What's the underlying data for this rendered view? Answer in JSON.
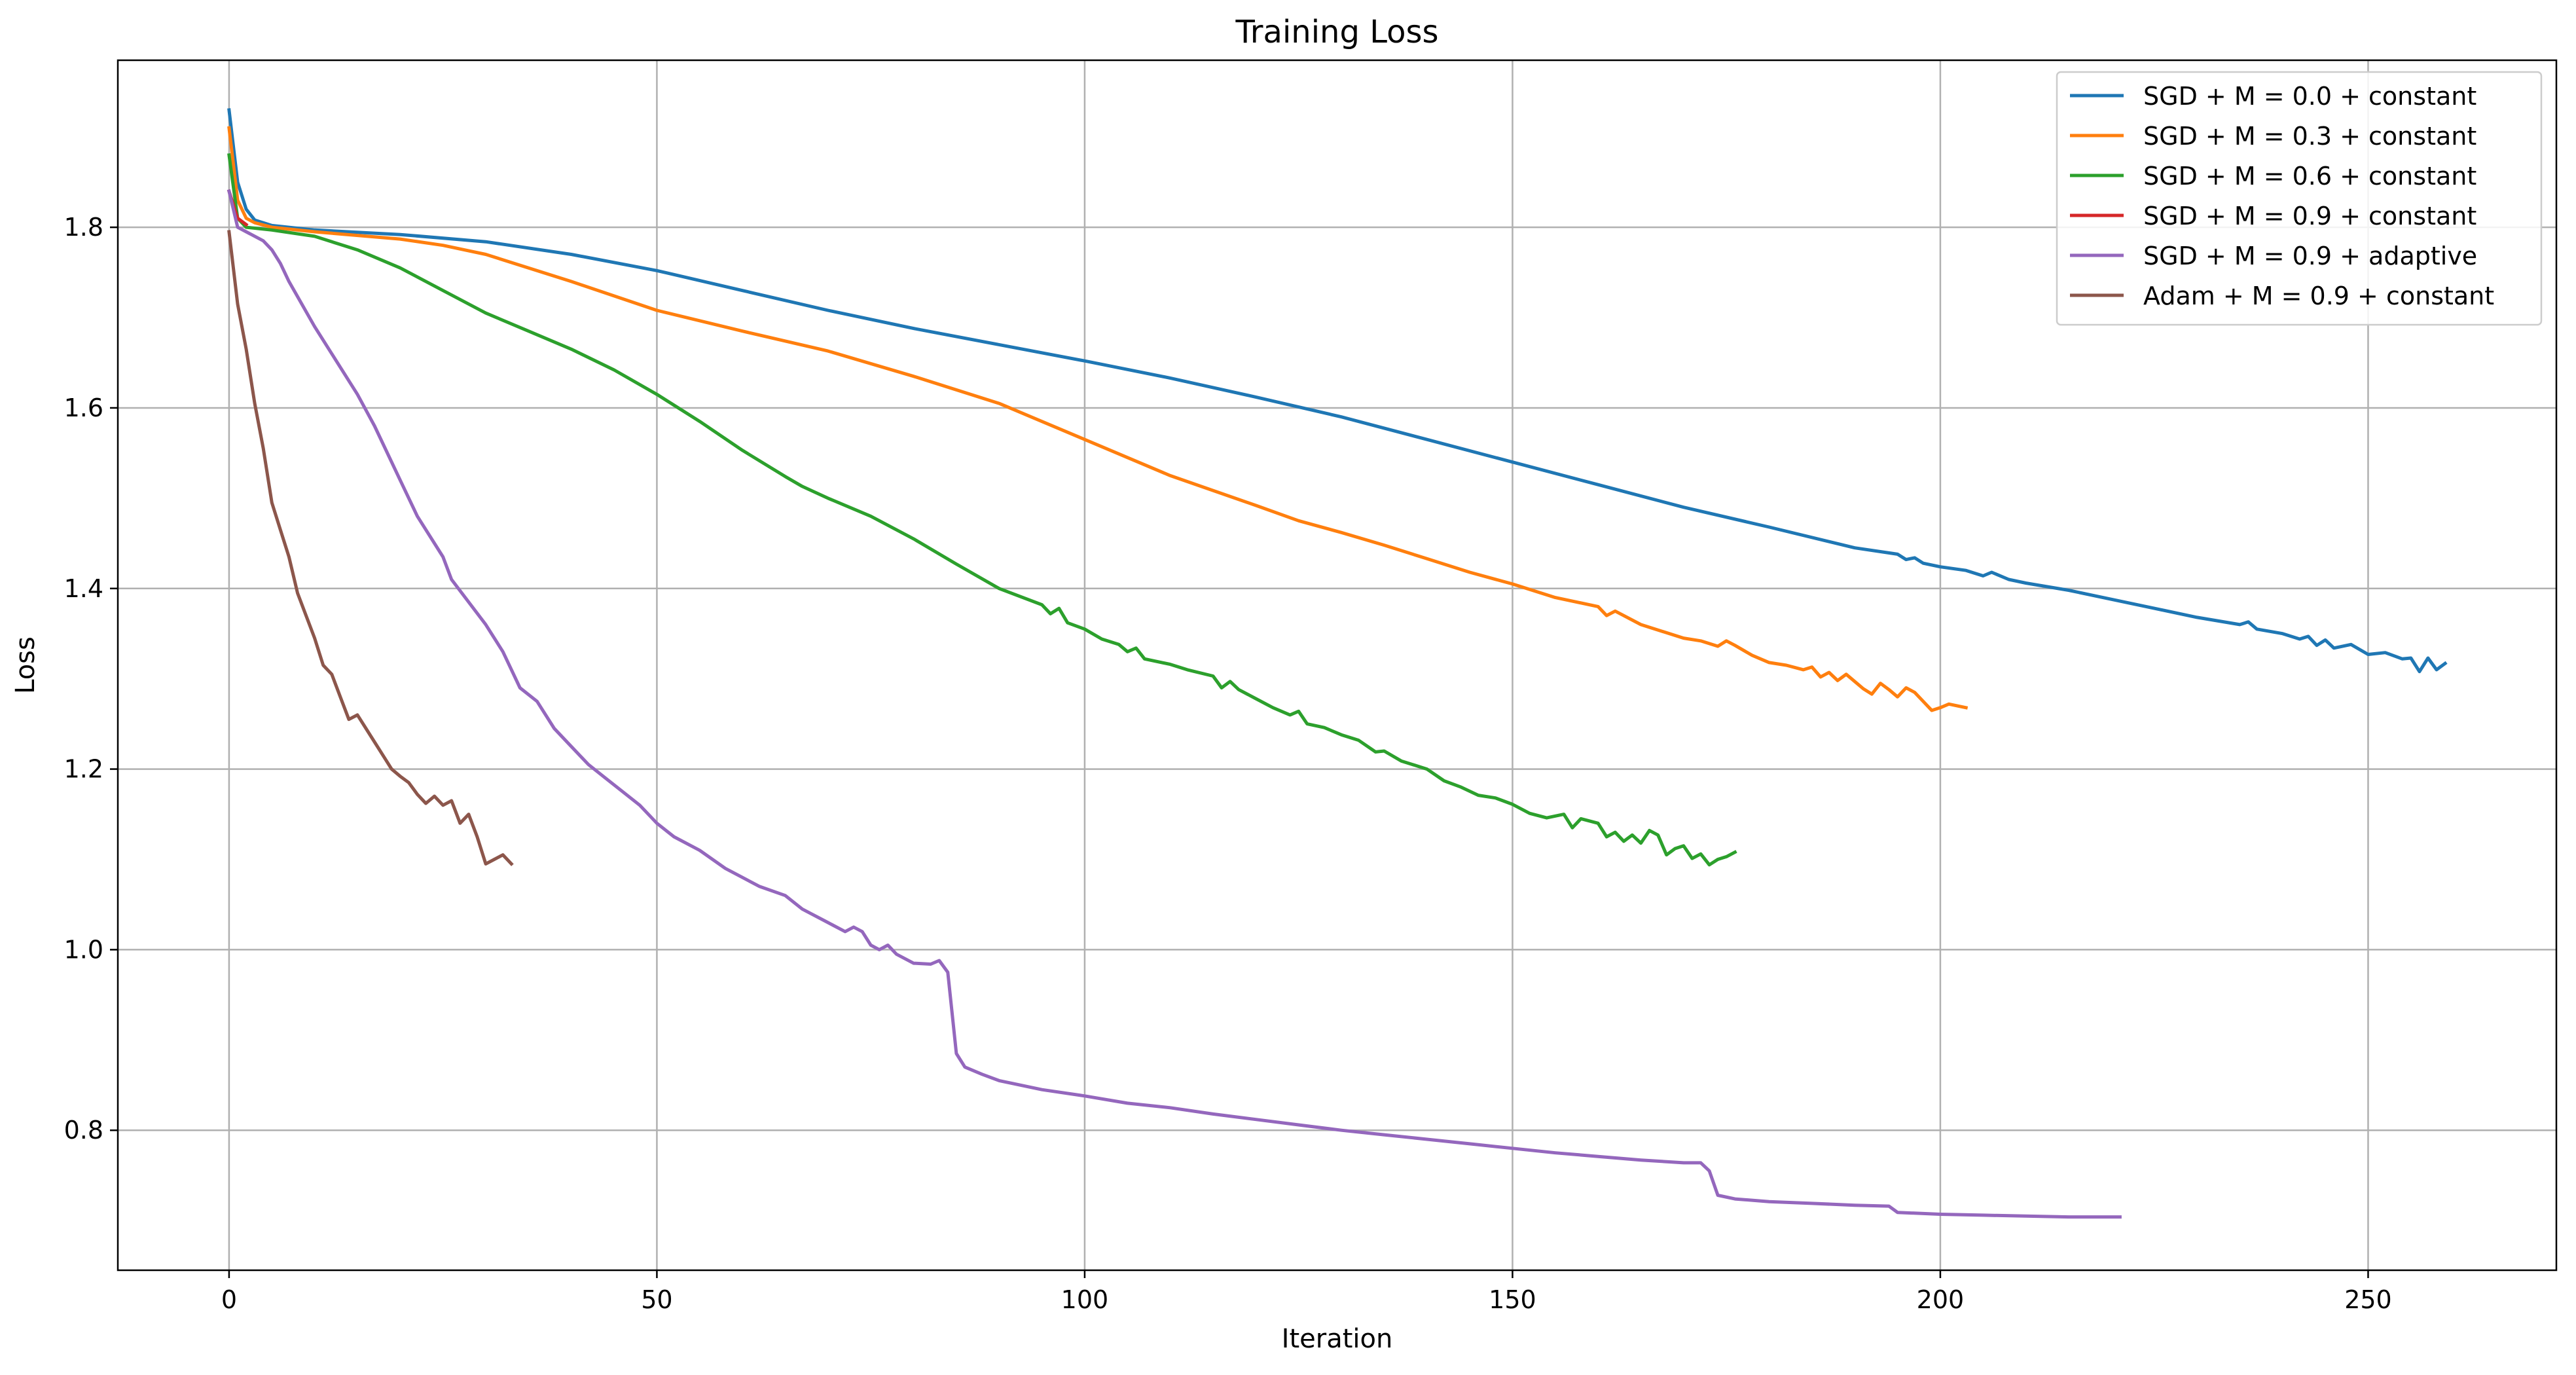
{
  "chart_data": {
    "type": "line",
    "title": "Training Loss",
    "xlabel": "Iteration",
    "ylabel": "Loss",
    "xlim": [
      -13,
      272
    ],
    "ylim": [
      0.645,
      1.985
    ],
    "xticks": [
      0,
      50,
      100,
      150,
      200,
      250
    ],
    "yticks": [
      0.8,
      1.0,
      1.2,
      1.4,
      1.6,
      1.8
    ],
    "xtick_labels": [
      "0",
      "50",
      "100",
      "150",
      "200",
      "250"
    ],
    "ytick_labels": [
      "0.8",
      "1.0",
      "1.2",
      "1.4",
      "1.6",
      "1.8"
    ],
    "grid": true,
    "legend_position": "top-right",
    "series": [
      {
        "name": "SGD + M = 0.0 + constant",
        "color": "#1f77b4",
        "points": [
          [
            0,
            1.93
          ],
          [
            1,
            1.85
          ],
          [
            2,
            1.82
          ],
          [
            3,
            1.808
          ],
          [
            5,
            1.802
          ],
          [
            10,
            1.797
          ],
          [
            20,
            1.792
          ],
          [
            30,
            1.784
          ],
          [
            40,
            1.77
          ],
          [
            50,
            1.752
          ],
          [
            60,
            1.73
          ],
          [
            70,
            1.708
          ],
          [
            80,
            1.688
          ],
          [
            90,
            1.67
          ],
          [
            100,
            1.652
          ],
          [
            110,
            1.633
          ],
          [
            120,
            1.612
          ],
          [
            130,
            1.59
          ],
          [
            140,
            1.565
          ],
          [
            150,
            1.54
          ],
          [
            160,
            1.515
          ],
          [
            170,
            1.49
          ],
          [
            180,
            1.468
          ],
          [
            190,
            1.445
          ],
          [
            195,
            1.438
          ],
          [
            196,
            1.432
          ],
          [
            197,
            1.434
          ],
          [
            198,
            1.428
          ],
          [
            200,
            1.424
          ],
          [
            203,
            1.42
          ],
          [
            205,
            1.414
          ],
          [
            206,
            1.418
          ],
          [
            208,
            1.41
          ],
          [
            210,
            1.406
          ],
          [
            215,
            1.398
          ],
          [
            220,
            1.388
          ],
          [
            225,
            1.378
          ],
          [
            230,
            1.368
          ],
          [
            235,
            1.36
          ],
          [
            236,
            1.363
          ],
          [
            237,
            1.355
          ],
          [
            240,
            1.35
          ],
          [
            242,
            1.344
          ],
          [
            243,
            1.347
          ],
          [
            244,
            1.337
          ],
          [
            245,
            1.343
          ],
          [
            246,
            1.334
          ],
          [
            248,
            1.338
          ],
          [
            250,
            1.327
          ],
          [
            252,
            1.329
          ],
          [
            254,
            1.322
          ],
          [
            255,
            1.323
          ],
          [
            256,
            1.308
          ],
          [
            257,
            1.323
          ],
          [
            258,
            1.31
          ],
          [
            259,
            1.317
          ]
        ]
      },
      {
        "name": "SGD + M = 0.3 + constant",
        "color": "#ff7f0e",
        "points": [
          [
            0,
            1.91
          ],
          [
            1,
            1.83
          ],
          [
            2,
            1.81
          ],
          [
            3,
            1.805
          ],
          [
            5,
            1.8
          ],
          [
            10,
            1.795
          ],
          [
            20,
            1.787
          ],
          [
            25,
            1.78
          ],
          [
            30,
            1.77
          ],
          [
            40,
            1.74
          ],
          [
            50,
            1.708
          ],
          [
            60,
            1.685
          ],
          [
            70,
            1.663
          ],
          [
            80,
            1.635
          ],
          [
            90,
            1.605
          ],
          [
            100,
            1.565
          ],
          [
            110,
            1.525
          ],
          [
            120,
            1.492
          ],
          [
            125,
            1.475
          ],
          [
            130,
            1.462
          ],
          [
            135,
            1.448
          ],
          [
            140,
            1.433
          ],
          [
            145,
            1.418
          ],
          [
            150,
            1.405
          ],
          [
            155,
            1.39
          ],
          [
            160,
            1.38
          ],
          [
            161,
            1.37
          ],
          [
            162,
            1.375
          ],
          [
            165,
            1.36
          ],
          [
            170,
            1.345
          ],
          [
            172,
            1.342
          ],
          [
            174,
            1.336
          ],
          [
            175,
            1.342
          ],
          [
            176,
            1.337
          ],
          [
            178,
            1.326
          ],
          [
            180,
            1.318
          ],
          [
            182,
            1.315
          ],
          [
            184,
            1.31
          ],
          [
            185,
            1.313
          ],
          [
            186,
            1.302
          ],
          [
            187,
            1.307
          ],
          [
            188,
            1.298
          ],
          [
            189,
            1.305
          ],
          [
            190,
            1.297
          ],
          [
            191,
            1.289
          ],
          [
            192,
            1.283
          ],
          [
            193,
            1.295
          ],
          [
            194,
            1.288
          ],
          [
            195,
            1.28
          ],
          [
            196,
            1.29
          ],
          [
            197,
            1.285
          ],
          [
            198,
            1.275
          ],
          [
            199,
            1.265
          ],
          [
            200,
            1.268
          ],
          [
            201,
            1.272
          ],
          [
            202,
            1.27
          ],
          [
            203,
            1.268
          ]
        ]
      },
      {
        "name": "SGD + M = 0.6 + constant",
        "color": "#2ca02c",
        "points": [
          [
            0,
            1.88
          ],
          [
            1,
            1.81
          ],
          [
            2,
            1.8
          ],
          [
            5,
            1.797
          ],
          [
            10,
            1.79
          ],
          [
            15,
            1.775
          ],
          [
            20,
            1.755
          ],
          [
            25,
            1.73
          ],
          [
            30,
            1.705
          ],
          [
            35,
            1.685
          ],
          [
            40,
            1.665
          ],
          [
            45,
            1.642
          ],
          [
            50,
            1.615
          ],
          [
            55,
            1.585
          ],
          [
            60,
            1.553
          ],
          [
            65,
            1.524
          ],
          [
            67,
            1.513
          ],
          [
            70,
            1.5
          ],
          [
            75,
            1.48
          ],
          [
            80,
            1.455
          ],
          [
            85,
            1.427
          ],
          [
            90,
            1.4
          ],
          [
            95,
            1.382
          ],
          [
            96,
            1.372
          ],
          [
            97,
            1.378
          ],
          [
            98,
            1.362
          ],
          [
            100,
            1.355
          ],
          [
            102,
            1.344
          ],
          [
            104,
            1.338
          ],
          [
            105,
            1.33
          ],
          [
            106,
            1.334
          ],
          [
            107,
            1.322
          ],
          [
            110,
            1.316
          ],
          [
            112,
            1.31
          ],
          [
            115,
            1.303
          ],
          [
            116,
            1.29
          ],
          [
            117,
            1.297
          ],
          [
            118,
            1.288
          ],
          [
            120,
            1.278
          ],
          [
            122,
            1.268
          ],
          [
            124,
            1.26
          ],
          [
            125,
            1.264
          ],
          [
            126,
            1.25
          ],
          [
            128,
            1.246
          ],
          [
            130,
            1.238
          ],
          [
            132,
            1.232
          ],
          [
            134,
            1.219
          ],
          [
            135,
            1.22
          ],
          [
            137,
            1.209
          ],
          [
            140,
            1.2
          ],
          [
            142,
            1.187
          ],
          [
            144,
            1.18
          ],
          [
            146,
            1.171
          ],
          [
            148,
            1.168
          ],
          [
            150,
            1.161
          ],
          [
            152,
            1.151
          ],
          [
            154,
            1.146
          ],
          [
            156,
            1.15
          ],
          [
            157,
            1.135
          ],
          [
            158,
            1.145
          ],
          [
            160,
            1.14
          ],
          [
            161,
            1.125
          ],
          [
            162,
            1.13
          ],
          [
            163,
            1.12
          ],
          [
            164,
            1.127
          ],
          [
            165,
            1.118
          ],
          [
            166,
            1.132
          ],
          [
            167,
            1.127
          ],
          [
            168,
            1.105
          ],
          [
            169,
            1.112
          ],
          [
            170,
            1.115
          ],
          [
            171,
            1.101
          ],
          [
            172,
            1.106
          ],
          [
            173,
            1.094
          ],
          [
            174,
            1.1
          ],
          [
            175,
            1.103
          ],
          [
            176,
            1.108
          ]
        ]
      },
      {
        "name": "SGD + M = 0.9 + constant",
        "color": "#d62728",
        "points": [
          [
            0,
            1.84
          ],
          [
            1,
            1.81
          ],
          [
            2,
            1.803
          ]
        ]
      },
      {
        "name": "SGD + M = 0.9 + adaptive",
        "color": "#9467bd",
        "points": [
          [
            0,
            1.84
          ],
          [
            1,
            1.8
          ],
          [
            2,
            1.795
          ],
          [
            4,
            1.785
          ],
          [
            5,
            1.775
          ],
          [
            6,
            1.76
          ],
          [
            7,
            1.74
          ],
          [
            10,
            1.69
          ],
          [
            15,
            1.615
          ],
          [
            17,
            1.58
          ],
          [
            20,
            1.52
          ],
          [
            22,
            1.48
          ],
          [
            25,
            1.435
          ],
          [
            26,
            1.41
          ],
          [
            30,
            1.36
          ],
          [
            32,
            1.33
          ],
          [
            34,
            1.29
          ],
          [
            36,
            1.275
          ],
          [
            38,
            1.245
          ],
          [
            40,
            1.225
          ],
          [
            42,
            1.205
          ],
          [
            44,
            1.19
          ],
          [
            46,
            1.175
          ],
          [
            48,
            1.16
          ],
          [
            50,
            1.14
          ],
          [
            52,
            1.125
          ],
          [
            55,
            1.11
          ],
          [
            58,
            1.09
          ],
          [
            60,
            1.08
          ],
          [
            62,
            1.07
          ],
          [
            65,
            1.06
          ],
          [
            67,
            1.045
          ],
          [
            68,
            1.04
          ],
          [
            70,
            1.03
          ],
          [
            72,
            1.02
          ],
          [
            73,
            1.025
          ],
          [
            74,
            1.02
          ],
          [
            75,
            1.005
          ],
          [
            76,
            1.0
          ],
          [
            77,
            1.005
          ],
          [
            78,
            0.995
          ],
          [
            80,
            0.985
          ],
          [
            82,
            0.984
          ],
          [
            83,
            0.988
          ],
          [
            84,
            0.975
          ],
          [
            85,
            0.885
          ],
          [
            86,
            0.87
          ],
          [
            88,
            0.862
          ],
          [
            90,
            0.855
          ],
          [
            95,
            0.845
          ],
          [
            100,
            0.838
          ],
          [
            105,
            0.83
          ],
          [
            110,
            0.825
          ],
          [
            115,
            0.818
          ],
          [
            120,
            0.812
          ],
          [
            125,
            0.806
          ],
          [
            130,
            0.8
          ],
          [
            135,
            0.795
          ],
          [
            140,
            0.79
          ],
          [
            145,
            0.785
          ],
          [
            150,
            0.78
          ],
          [
            155,
            0.775
          ],
          [
            160,
            0.771
          ],
          [
            165,
            0.767
          ],
          [
            170,
            0.764
          ],
          [
            172,
            0.764
          ],
          [
            173,
            0.755
          ],
          [
            174,
            0.728
          ],
          [
            176,
            0.724
          ],
          [
            180,
            0.721
          ],
          [
            185,
            0.719
          ],
          [
            190,
            0.717
          ],
          [
            194,
            0.716
          ],
          [
            195,
            0.709
          ],
          [
            200,
            0.707
          ],
          [
            205,
            0.706
          ],
          [
            210,
            0.705
          ],
          [
            215,
            0.704
          ],
          [
            221,
            0.704
          ]
        ]
      },
      {
        "name": "Adam + M = 0.9 + constant",
        "color": "#8c564b",
        "points": [
          [
            0,
            1.795
          ],
          [
            1,
            1.715
          ],
          [
            2,
            1.665
          ],
          [
            3,
            1.605
          ],
          [
            4,
            1.555
          ],
          [
            5,
            1.495
          ],
          [
            6,
            1.465
          ],
          [
            7,
            1.435
          ],
          [
            8,
            1.395
          ],
          [
            9,
            1.37
          ],
          [
            10,
            1.345
          ],
          [
            11,
            1.315
          ],
          [
            12,
            1.305
          ],
          [
            13,
            1.28
          ],
          [
            14,
            1.255
          ],
          [
            15,
            1.26
          ],
          [
            16,
            1.245
          ],
          [
            18,
            1.215
          ],
          [
            19,
            1.2
          ],
          [
            20,
            1.192
          ],
          [
            21,
            1.185
          ],
          [
            22,
            1.172
          ],
          [
            23,
            1.162
          ],
          [
            24,
            1.17
          ],
          [
            25,
            1.16
          ],
          [
            26,
            1.165
          ],
          [
            27,
            1.14
          ],
          [
            28,
            1.15
          ],
          [
            29,
            1.125
          ],
          [
            30,
            1.095
          ],
          [
            31,
            1.1
          ],
          [
            32,
            1.105
          ],
          [
            33,
            1.095
          ]
        ]
      }
    ]
  }
}
